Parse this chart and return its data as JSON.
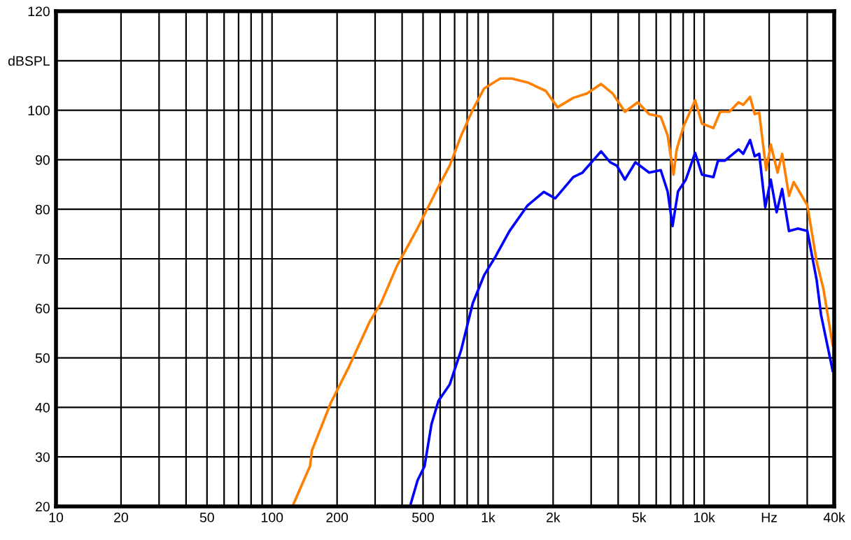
{
  "chart_data": {
    "type": "line",
    "log": "x",
    "grid": true,
    "marker": "none",
    "line_style": "solid",
    "xlim": [
      10,
      40000
    ],
    "ylim": [
      20,
      120
    ],
    "xticks": [
      {
        "value": 10,
        "label": "10"
      },
      {
        "value": 20,
        "label": "20"
      },
      {
        "value": 30,
        "label": null
      },
      {
        "value": 40,
        "label": null
      },
      {
        "value": 50,
        "label": "50"
      },
      {
        "value": 60,
        "label": null
      },
      {
        "value": 70,
        "label": null
      },
      {
        "value": 80,
        "label": null
      },
      {
        "value": 90,
        "label": null
      },
      {
        "value": 100,
        "label": "100"
      },
      {
        "value": 200,
        "label": "200"
      },
      {
        "value": 300,
        "label": null
      },
      {
        "value": 400,
        "label": null
      },
      {
        "value": 500,
        "label": "500"
      },
      {
        "value": 600,
        "label": null
      },
      {
        "value": 700,
        "label": null
      },
      {
        "value": 800,
        "label": null
      },
      {
        "value": 900,
        "label": null
      },
      {
        "value": 1000,
        "label": "1k"
      },
      {
        "value": 2000,
        "label": "2k"
      },
      {
        "value": 3000,
        "label": null
      },
      {
        "value": 4000,
        "label": null
      },
      {
        "value": 5000,
        "label": "5k"
      },
      {
        "value": 6000,
        "label": null
      },
      {
        "value": 7000,
        "label": null
      },
      {
        "value": 8000,
        "label": null
      },
      {
        "value": 9000,
        "label": null
      },
      {
        "value": 10000,
        "label": "10k"
      },
      {
        "value": 20000,
        "label": "Hz"
      },
      {
        "value": 30000,
        "label": null
      },
      {
        "value": 40000,
        "label": "40k"
      }
    ],
    "yticks": [
      20,
      30,
      40,
      50,
      60,
      70,
      80,
      90,
      100,
      {
        "value": 110,
        "label": "dBSPL"
      },
      120
    ],
    "series": [
      {
        "color": "#ff8000",
        "x": [
          126,
          150,
          153,
          187,
          227,
          283,
          319,
          379,
          472,
          574,
          664,
          751,
          849,
          959,
          1138,
          1288,
          1525,
          1850,
          2095,
          2480,
          2876,
          3334,
          3770,
          4298,
          4929,
          5565,
          6297,
          6778,
          7218,
          7466,
          8040,
          9085,
          9775,
          11040,
          11870,
          13090,
          14430,
          15170,
          16320,
          17140,
          17990,
          19370,
          20340,
          21880,
          22970,
          24710,
          25960,
          30050,
          33150,
          35670,
          39350
        ],
        "values": [
          20.6,
          28.2,
          31.3,
          40.9,
          48.2,
          57.3,
          61.0,
          68.6,
          76.2,
          83.6,
          88.8,
          94.9,
          100.1,
          104.4,
          106.4,
          106.4,
          105.6,
          103.9,
          100.6,
          102.5,
          103.4,
          105.3,
          103.4,
          99.7,
          101.6,
          99.2,
          98.7,
          94.9,
          87.0,
          92.1,
          96.8,
          102.0,
          97.3,
          96.4,
          99.7,
          99.7,
          101.6,
          101.1,
          102.7,
          99.2,
          99.5,
          87.9,
          93.1,
          87.4,
          91.2,
          82.7,
          85.5,
          80.8,
          69.5,
          63.9,
          52.6
        ]
      },
      {
        "color": "#0000ff",
        "x": [
          439,
          472,
          508,
          547,
          589,
          664,
          751,
          849,
          959,
          1084,
          1256,
          1525,
          1811,
          2046,
          2480,
          2735,
          3334,
          3670,
          3945,
          4298,
          4808,
          5565,
          6297,
          6778,
          7140,
          7570,
          8230,
          9085,
          9775,
          11040,
          11590,
          12450,
          14430,
          15170,
          16320,
          17140,
          17990,
          19180,
          20340,
          21660,
          22970,
          24710,
          27230,
          30050,
          33150,
          34760,
          39350
        ],
        "values": [
          20.6,
          25.3,
          28.1,
          36.6,
          41.3,
          44.6,
          51.6,
          61.0,
          66.7,
          70.5,
          75.6,
          80.8,
          83.5,
          82.2,
          86.5,
          87.4,
          91.7,
          89.5,
          88.8,
          86.0,
          89.5,
          87.4,
          87.9,
          83.6,
          76.6,
          83.6,
          86.0,
          91.4,
          87.0,
          86.5,
          89.8,
          89.8,
          92.1,
          91.2,
          94.0,
          90.7,
          91.2,
          80.4,
          86.0,
          79.4,
          84.1,
          75.6,
          76.1,
          75.6,
          65.8,
          58.7,
          47.4
        ]
      }
    ]
  }
}
